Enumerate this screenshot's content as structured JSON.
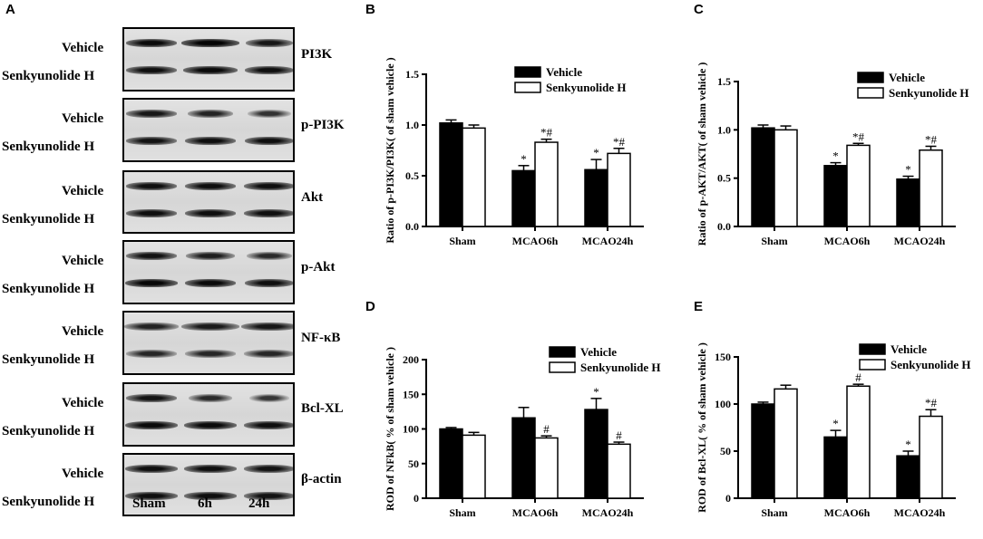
{
  "panel_a": {
    "letter": "A",
    "row_top": "Vehicle",
    "row_bottom": "Senkyunolide H",
    "proteins": [
      "PI3K",
      "p-PI3K",
      "Akt",
      "p-Akt",
      "NF-κB",
      "Bcl-XL",
      "β-actin"
    ],
    "lanes": [
      "Sham",
      "6h",
      "24h"
    ]
  },
  "chart_data": [
    {
      "panel": "B",
      "type": "bar",
      "categories": [
        "Sham",
        "MCAO6h",
        "MCAO24h"
      ],
      "series": [
        {
          "name": "Vehicle",
          "values": [
            1.02,
            0.55,
            0.56
          ],
          "errors": [
            0.03,
            0.05,
            0.1
          ],
          "annotations": [
            "",
            "*",
            "*"
          ]
        },
        {
          "name": "Senkyunolide H",
          "values": [
            0.97,
            0.83,
            0.72
          ],
          "errors": [
            0.03,
            0.03,
            0.05
          ],
          "annotations": [
            "",
            "*#",
            "*#"
          ]
        }
      ],
      "ylabel": "Ratio of p-PI3K/PI3K( of sham vehicle )",
      "ylim": [
        0.0,
        1.5
      ],
      "yticks": [
        "0.0",
        "0.5",
        "1.0",
        "1.5"
      ],
      "legend": "top-right"
    },
    {
      "panel": "C",
      "type": "bar",
      "categories": [
        "Sham",
        "MCAO6h",
        "MCAO24h"
      ],
      "series": [
        {
          "name": "Vehicle",
          "values": [
            1.02,
            0.63,
            0.49
          ],
          "errors": [
            0.03,
            0.03,
            0.03
          ],
          "annotations": [
            "",
            "*",
            "*"
          ]
        },
        {
          "name": "Senkyunolide H",
          "values": [
            1.0,
            0.84,
            0.79
          ],
          "errors": [
            0.04,
            0.02,
            0.04
          ],
          "annotations": [
            "",
            "*#",
            "*#"
          ]
        }
      ],
      "ylabel": "Ratio of p-AKT/AKT( of sham vehicle )",
      "ylim": [
        0.0,
        1.5
      ],
      "yticks": [
        "0.0",
        "0.5",
        "1.0",
        "1.5"
      ],
      "legend": "top-right"
    },
    {
      "panel": "D",
      "type": "bar",
      "categories": [
        "Sham",
        "MCAO6h",
        "MCAO24h"
      ],
      "series": [
        {
          "name": "Vehicle",
          "values": [
            100,
            116,
            128
          ],
          "errors": [
            2,
            15,
            16
          ],
          "annotations": [
            "",
            "",
            "*"
          ]
        },
        {
          "name": "Senkyunolide H",
          "values": [
            91,
            87,
            78
          ],
          "errors": [
            4,
            3,
            3
          ],
          "annotations": [
            "",
            "#",
            "#"
          ]
        }
      ],
      "ylabel": "ROD of NFkB( % of sham vehicle )",
      "ylim": [
        0,
        200
      ],
      "yticks": [
        "0",
        "50",
        "100",
        "150",
        "200"
      ],
      "legend": "top-right"
    },
    {
      "panel": "E",
      "type": "bar",
      "categories": [
        "Sham",
        "MCAO6h",
        "MCAO24h"
      ],
      "series": [
        {
          "name": "Vehicle",
          "values": [
            100,
            65,
            45
          ],
          "errors": [
            2,
            7,
            5
          ],
          "annotations": [
            "",
            "*",
            "*"
          ]
        },
        {
          "name": "Senkyunolide H",
          "values": [
            116,
            119,
            87
          ],
          "errors": [
            4,
            2,
            7
          ],
          "annotations": [
            "",
            "#",
            "*#"
          ]
        }
      ],
      "ylabel": "ROD of Bcl-XL( % of sham vehicle )",
      "ylim": [
        0,
        150
      ],
      "yticks": [
        "0",
        "50",
        "100",
        "150"
      ],
      "legend": "top-right"
    }
  ]
}
